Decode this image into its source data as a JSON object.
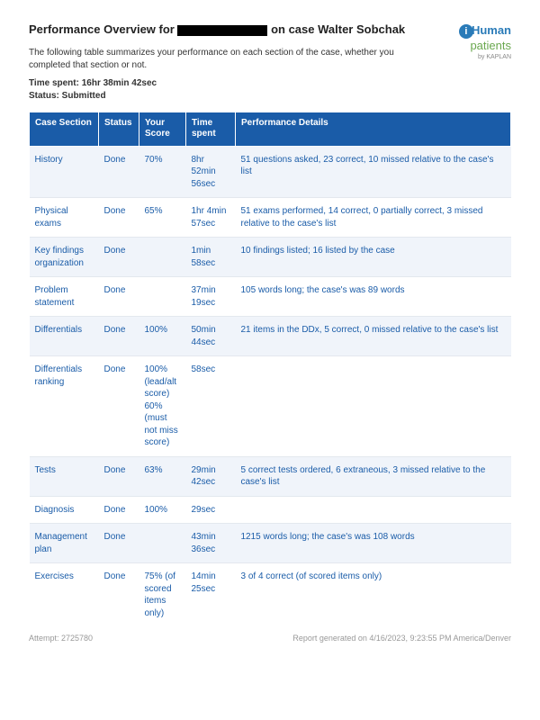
{
  "header": {
    "title_prefix": "Performance Overview for ",
    "title_suffix": " on case Walter Sobchak",
    "intro": "The following table summarizes your performance on each section of the case, whether you completed that section or not.",
    "time_spent_label": "Time spent: ",
    "time_spent_value": "16hr 38min 42sec",
    "status_label": "Status: ",
    "status_value": "Submitted"
  },
  "logo": {
    "brand_h": "Human",
    "brand_p": "patients",
    "byline": "by KAPLAN"
  },
  "table": {
    "columns": [
      "Case Section",
      "Status",
      "Your Score",
      "Time spent",
      "Performance Details"
    ],
    "header_bg": "#1a5ca8",
    "header_text_color": "#ffffff",
    "cell_text_color": "#1a5ca8",
    "row_alt_bg": "#f0f4fa",
    "rows": [
      {
        "section": "History",
        "status": "Done",
        "score": "70%",
        "time": "8hr 52min 56sec",
        "details": "51 questions asked, 23 correct, 10 missed relative to the case's list"
      },
      {
        "section": "Physical exams",
        "status": "Done",
        "score": "65%",
        "time": "1hr 4min 57sec",
        "details": "51 exams performed, 14 correct, 0 partially correct, 3 missed relative to the case's list"
      },
      {
        "section": "Key findings organization",
        "status": "Done",
        "score": "",
        "time": "1min 58sec",
        "details": "10 findings listed; 16 listed by the case"
      },
      {
        "section": "Problem statement",
        "status": "Done",
        "score": "",
        "time": "37min 19sec",
        "details": "105 words long; the case's was 89 words"
      },
      {
        "section": "Differentials",
        "status": "Done",
        "score": "100%",
        "time": "50min 44sec",
        "details": "21 items in the DDx, 5 correct, 0 missed relative to the case's list"
      },
      {
        "section": "Differentials ranking",
        "status": "Done",
        "score": "100% (lead/alt score) 60% (must not miss score)",
        "time": "58sec",
        "details": ""
      },
      {
        "section": "Tests",
        "status": "Done",
        "score": "63%",
        "time": "29min 42sec",
        "details": "5 correct tests ordered, 6 extraneous, 3 missed relative to the case's list"
      },
      {
        "section": "Diagnosis",
        "status": "Done",
        "score": "100%",
        "time": "29sec",
        "details": ""
      },
      {
        "section": "Management plan",
        "status": "Done",
        "score": "",
        "time": "43min 36sec",
        "details": "1215 words long; the case's was 108 words"
      },
      {
        "section": "Exercises",
        "status": "Done",
        "score": "75% (of scored items only)",
        "time": "14min 25sec",
        "details": "3 of 4 correct (of scored items only)"
      }
    ]
  },
  "footer": {
    "attempt_label": "Attempt: ",
    "attempt_value": "2725780",
    "generated_label": "Report generated on ",
    "generated_value": "4/16/2023, 9:23:55 PM America/Denver"
  }
}
